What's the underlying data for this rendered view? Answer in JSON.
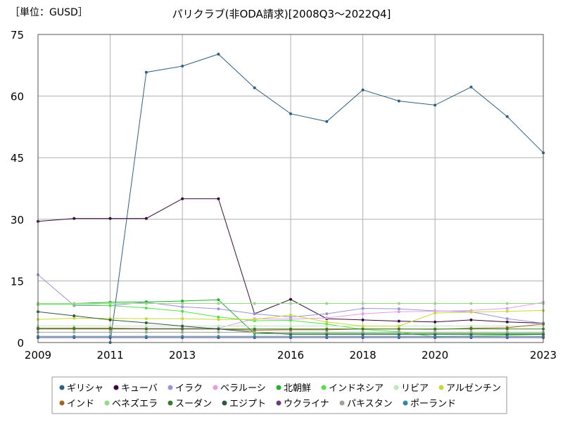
{
  "unit_label": "［単位：GUSD］",
  "chart_data": {
    "type": "line",
    "title": "パリクラブ(非ODA請求)[2008Q3～2022Q4]",
    "xlabel": "",
    "ylabel": "",
    "xlim": [
      2009,
      2023
    ],
    "ylim": [
      0,
      75
    ],
    "x_ticks": [
      2009,
      2011,
      2013,
      2016,
      2018,
      2020,
      2023
    ],
    "y_ticks": [
      0,
      15,
      30,
      45,
      60,
      75
    ],
    "grid": true,
    "legend_position": "bottom",
    "x": [
      2009,
      2010,
      2011,
      2012,
      2013,
      2014,
      2015,
      2016,
      2017,
      2018,
      2019,
      2020,
      2021,
      2022,
      2023
    ],
    "series": [
      {
        "name": "ギリシャ",
        "color": "#2f5f85",
        "values": [
          null,
          null,
          0,
          65.8,
          67.3,
          70.2,
          62.0,
          55.7,
          53.8,
          61.5,
          58.8,
          57.8,
          62.2,
          55.0,
          46.2
        ]
      },
      {
        "name": "キューバ",
        "color": "#3a0a3a",
        "values": [
          29.5,
          30.2,
          30.2,
          30.2,
          35.0,
          35.0,
          7.0,
          10.5,
          5.8,
          5.5,
          5.2,
          5.0,
          5.5,
          5.0,
          4.7
        ]
      },
      {
        "name": "イラク",
        "color": "#9a95d8",
        "values": [
          16.5,
          9.0,
          9.0,
          9.8,
          8.7,
          8.2,
          7.0,
          6.2,
          7.0,
          8.3,
          8.2,
          7.7,
          7.5,
          5.8,
          4.7
        ]
      },
      {
        "name": "ベラルーシ",
        "color": "#e99ae6",
        "values": [
          3.5,
          3.5,
          3.5,
          3.5,
          3.5,
          3.5,
          5.8,
          5.7,
          6.0,
          7.0,
          7.5,
          7.6,
          7.8,
          8.3,
          9.8
        ]
      },
      {
        "name": "北朝鮮",
        "color": "#22b22a",
        "values": [
          9.5,
          9.5,
          9.8,
          9.9,
          10.1,
          10.4,
          2.2,
          2.2,
          2.2,
          2.2,
          2.2,
          2.2,
          2.2,
          2.2,
          2.2
        ]
      },
      {
        "name": "インドネシア",
        "color": "#55e04a",
        "values": [
          9.3,
          9.3,
          9.0,
          8.4,
          7.6,
          6.2,
          5.3,
          5.4,
          4.5,
          3.2,
          2.6,
          1.4,
          1.6,
          1.8,
          2.0
        ]
      },
      {
        "name": "リビア",
        "color": "#b8eab6",
        "values": [
          4.0,
          4.0,
          4.0,
          4.0,
          4.0,
          4.0,
          4.0,
          4.0,
          4.0,
          4.0,
          4.0,
          4.0,
          4.0,
          4.0,
          4.0
        ]
      },
      {
        "name": "アルゼンチン",
        "color": "#c8d83a",
        "values": [
          5.6,
          5.9,
          5.9,
          5.8,
          5.8,
          5.6,
          5.6,
          6.7,
          5.0,
          4.0,
          4.0,
          7.2,
          7.4,
          7.6,
          7.8
        ]
      },
      {
        "name": "インド",
        "color": "#a0641e",
        "values": [
          3.5,
          3.5,
          3.5,
          3.3,
          3.3,
          3.3,
          3.0,
          3.1,
          3.1,
          3.3,
          3.3,
          3.2,
          3.5,
          3.6,
          4.5
        ]
      },
      {
        "name": "ベネズエラ",
        "color": "#98d68a",
        "values": [
          9.5,
          9.5,
          9.5,
          9.5,
          9.5,
          9.5,
          9.5,
          9.5,
          9.5,
          9.5,
          9.5,
          9.5,
          9.5,
          9.5,
          9.5
        ]
      },
      {
        "name": "スーダン",
        "color": "#3a7a2a",
        "values": [
          3.3,
          3.3,
          3.3,
          3.3,
          3.3,
          3.3,
          3.3,
          3.3,
          3.3,
          3.3,
          3.3,
          3.3,
          3.3,
          3.3,
          3.3
        ]
      },
      {
        "name": "エジプト",
        "color": "#2e5a3e",
        "values": [
          7.5,
          6.5,
          5.5,
          4.8,
          4.0,
          3.3,
          2.5,
          2.0,
          2.0,
          2.0,
          2.0,
          2.0,
          2.0,
          2.0,
          2.0
        ]
      },
      {
        "name": "ウクライナ",
        "color": "#6a3a7a",
        "values": [
          1.2,
          1.2,
          1.2,
          1.2,
          1.2,
          1.2,
          1.2,
          1.2,
          1.2,
          1.2,
          1.2,
          1.2,
          1.2,
          1.2,
          1.2
        ]
      },
      {
        "name": "パキスタン",
        "color": "#a0a093",
        "values": [
          2.5,
          2.5,
          2.5,
          2.5,
          2.5,
          2.5,
          2.5,
          2.5,
          2.5,
          2.5,
          2.5,
          2.5,
          2.5,
          2.5,
          2.5
        ]
      },
      {
        "name": "ポーランド",
        "color": "#2a8aa8",
        "values": [
          1.5,
          1.5,
          1.5,
          1.5,
          1.5,
          1.5,
          1.5,
          1.5,
          1.5,
          1.5,
          1.5,
          1.5,
          1.5,
          1.5,
          1.5
        ]
      }
    ]
  }
}
